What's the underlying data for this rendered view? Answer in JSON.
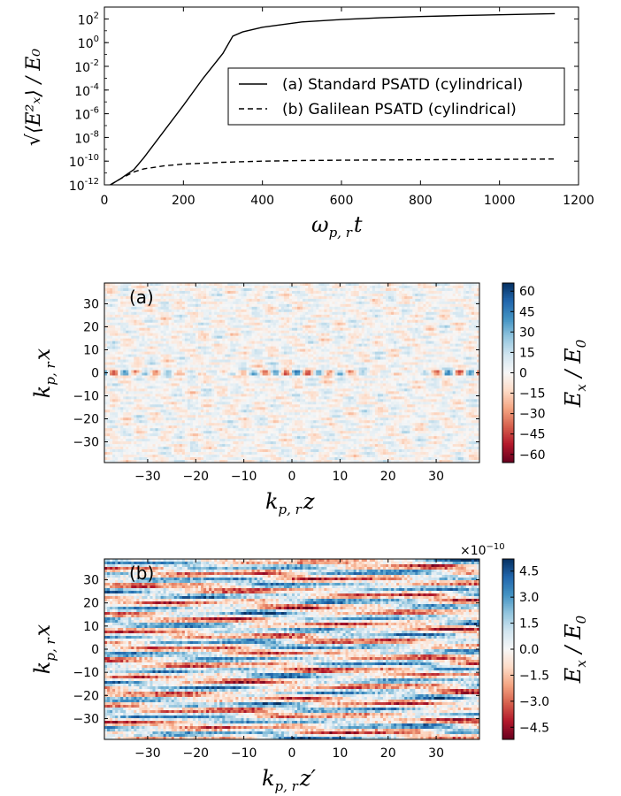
{
  "chart_data": [
    {
      "type": "line",
      "xlabel": "ω",
      "xlabel_sub": "p, r",
      "xlabel_tail": "t",
      "ylabel": "√⟨E²ₓ⟩ / E₀",
      "xlim": [
        0,
        1200
      ],
      "ylim_log10": [
        -12,
        3
      ],
      "yscale": "log",
      "x_ticks": [
        "0",
        "200",
        "400",
        "600",
        "800",
        "1000",
        "1200"
      ],
      "y_ticks": [
        {
          "base": "10",
          "exp": "2"
        },
        {
          "base": "10",
          "exp": "0"
        },
        {
          "base": "10",
          "exp": "-2"
        },
        {
          "base": "10",
          "exp": "-4"
        },
        {
          "base": "10",
          "exp": "-6"
        },
        {
          "base": "10",
          "exp": "-8"
        },
        {
          "base": "10",
          "exp": "-10"
        },
        {
          "base": "10",
          "exp": "-12"
        }
      ],
      "legend_position": "center-right",
      "series": [
        {
          "name": "(a) Standard PSATD (cylindrical)",
          "style": "solid",
          "x": [
            15,
            40,
            75,
            100,
            150,
            200,
            250,
            300,
            325,
            350,
            400,
            500,
            600,
            700,
            800,
            900,
            1000,
            1140
          ],
          "y_log10": [
            -12,
            -11.5,
            -10.7,
            -9.7,
            -7.5,
            -5.3,
            -3.0,
            -0.9,
            0.55,
            0.9,
            1.3,
            1.75,
            1.95,
            2.1,
            2.2,
            2.28,
            2.35,
            2.45
          ]
        },
        {
          "name": "(b) Galilean PSATD (cylindrical)",
          "style": "dashed",
          "x": [
            15,
            40,
            75,
            100,
            150,
            200,
            300,
            400,
            500,
            600,
            800,
            1000,
            1140
          ],
          "y_log10": [
            -12,
            -11.5,
            -10.9,
            -10.65,
            -10.4,
            -10.25,
            -10.1,
            -10.0,
            -9.95,
            -9.92,
            -9.88,
            -9.85,
            -9.82
          ]
        }
      ]
    },
    {
      "type": "heatmap",
      "panel_label": "(a)",
      "xlabel": "k",
      "xlabel_sub": "p, r",
      "xlabel_tail": "z",
      "ylabel": "k",
      "ylabel_sub": "p, r",
      "ylabel_tail": "x",
      "xlim": [
        -39,
        39
      ],
      "ylim": [
        -39,
        39
      ],
      "x_ticks": [
        "−30",
        "−20",
        "−10",
        "0",
        "10",
        "20",
        "30"
      ],
      "y_ticks": [
        "30",
        "20",
        "10",
        "0",
        "−10",
        "−20",
        "−30"
      ],
      "colorbar_label": "E",
      "colorbar_label_sub": "x",
      "colorbar_label_tail": " / E",
      "colorbar_label_tail_sub": "0",
      "colorbar_ticks": [
        "60",
        "45",
        "30",
        "15",
        "0",
        "−15",
        "−30",
        "−45",
        "−60"
      ],
      "colormap": [
        "#67001f",
        "#b2182b",
        "#d6604d",
        "#f4a582",
        "#fddbc7",
        "#f7f7f7",
        "#d1e5f0",
        "#92c5de",
        "#4393c3",
        "#2166ac",
        "#053061"
      ],
      "clim": [
        -66,
        66
      ]
    },
    {
      "type": "heatmap",
      "panel_label": "(b)",
      "xlabel": "k",
      "xlabel_sub": "p, r",
      "xlabel_tail": "z′",
      "ylabel": "k",
      "ylabel_sub": "p, r",
      "ylabel_tail": "x",
      "xlim": [
        -39,
        39
      ],
      "ylim": [
        -39,
        39
      ],
      "x_ticks": [
        "−30",
        "−20",
        "−10",
        "0",
        "10",
        "20",
        "30"
      ],
      "y_ticks": [
        "30",
        "20",
        "10",
        "0",
        "−10",
        "−20",
        "−30"
      ],
      "colorbar_label": "E",
      "colorbar_label_sub": "x",
      "colorbar_label_tail": " / E",
      "colorbar_label_tail_sub": "0",
      "colorbar_offset": "×10",
      "colorbar_offset_exp": "−10",
      "colorbar_ticks": [
        "4.5",
        "3.0",
        "1.5",
        "0.0",
        "−1.5",
        "−3.0",
        "−4.5"
      ],
      "colormap": [
        "#67001f",
        "#b2182b",
        "#d6604d",
        "#f4a582",
        "#fddbc7",
        "#f7f7f7",
        "#d1e5f0",
        "#92c5de",
        "#4393c3",
        "#2166ac",
        "#053061"
      ],
      "clim": [
        -5.2,
        5.2
      ]
    }
  ]
}
